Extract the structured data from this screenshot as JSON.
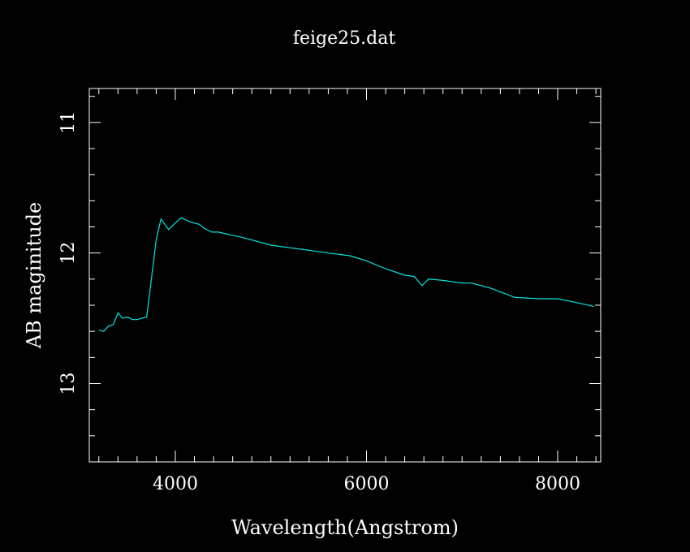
{
  "chart_data": {
    "type": "line",
    "title": "feige25.dat",
    "xlabel": "Wavelength(Angstrom)",
    "ylabel": "AB maginitude",
    "xlim": [
      3100,
      8450
    ],
    "ylim": [
      13.6,
      10.74
    ],
    "y_inverted": true,
    "grid": false,
    "xticks_major": [
      4000,
      6000,
      8000
    ],
    "xticks_minor_step": 200,
    "xtick_labels": [
      "4000",
      "6000",
      "8000"
    ],
    "yticks_major": [
      11,
      12,
      13
    ],
    "yticks_minor_step": 0.2,
    "ytick_labels": [
      "11",
      "12",
      "13"
    ],
    "colors": {
      "background": "#000000",
      "frame": "#ffffff",
      "line": "#00e5e5"
    },
    "series": [
      {
        "x": [
          3200,
          3250,
          3300,
          3350,
          3400,
          3450,
          3500,
          3550,
          3600,
          3650,
          3700,
          3750,
          3800,
          3850,
          3930,
          4000,
          4060,
          4150,
          4250,
          4300,
          4380,
          4450,
          4570,
          4700,
          4850,
          5000,
          5200,
          5400,
          5600,
          5820,
          6000,
          6200,
          6400,
          6500,
          6580,
          6650,
          6800,
          7000,
          7100,
          7300,
          7550,
          7800,
          8000,
          8200,
          8380
        ],
        "values": [
          12.59,
          12.6,
          12.56,
          12.55,
          12.46,
          12.5,
          12.49,
          12.51,
          12.51,
          12.5,
          12.49,
          12.2,
          11.9,
          11.74,
          11.82,
          11.77,
          11.73,
          11.76,
          11.78,
          11.81,
          11.84,
          11.84,
          11.86,
          11.88,
          11.91,
          11.94,
          11.96,
          11.98,
          12.0,
          12.02,
          12.06,
          12.12,
          12.17,
          12.18,
          12.25,
          12.2,
          12.21,
          12.23,
          12.23,
          12.27,
          12.34,
          12.35,
          12.35,
          12.38,
          12.41
        ]
      }
    ]
  }
}
